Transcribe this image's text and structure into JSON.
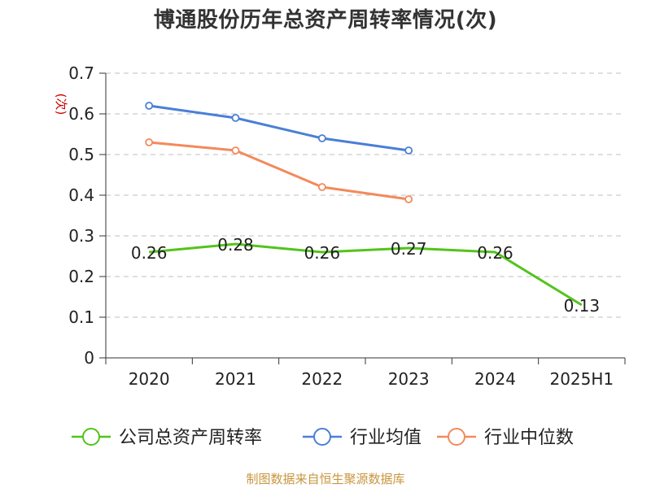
{
  "title": "博通股份历年总资产周转率情况(次)",
  "source": "制图数据来自恒生聚源数据库",
  "colors": {
    "series0": "#52c41a",
    "series1": "#4a7fd6",
    "series2": "#f4895b",
    "ylabel": "#cc0000",
    "grid": "#cccccc",
    "axis": "#333333",
    "text": "#222222"
  },
  "chart_data": {
    "type": "line",
    "title": "博通股份历年总资产周转率情况(次)",
    "xlabel": "",
    "ylabel": "(次)",
    "ylim": [
      0,
      0.7
    ],
    "yticks": [
      0,
      0.1,
      0.2,
      0.3,
      0.4,
      0.5,
      0.6,
      0.7
    ],
    "ytick_labels": [
      "0",
      "0.1",
      "0.2",
      "0.3",
      "0.4",
      "0.5",
      "0.6",
      "0.7"
    ],
    "grid": true,
    "legend": "bottom",
    "categories": [
      "2020",
      "2021",
      "2022",
      "2023",
      "2024",
      "2025H1"
    ],
    "series": [
      {
        "name": "公司总资产周转率",
        "values": [
          0.26,
          0.28,
          0.26,
          0.27,
          0.26,
          0.13
        ],
        "labels": [
          "0.26",
          "0.28",
          "0.26",
          "0.27",
          "0.26",
          "0.13"
        ]
      },
      {
        "name": "行业均值",
        "values": [
          0.62,
          0.59,
          0.54,
          0.51,
          null,
          null
        ]
      },
      {
        "name": "行业中位数",
        "values": [
          0.53,
          0.51,
          0.42,
          0.39,
          null,
          null
        ]
      }
    ]
  }
}
